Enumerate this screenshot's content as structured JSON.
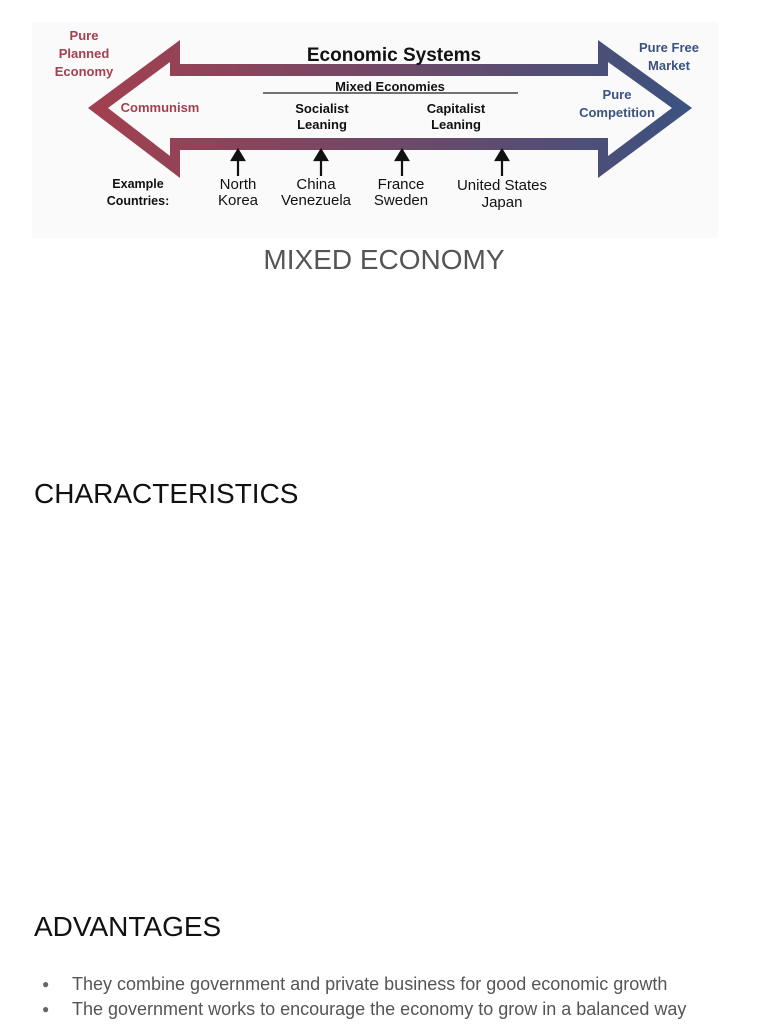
{
  "diagram": {
    "title": "Economic Systems",
    "left_end": [
      "Pure",
      "Planned",
      "Economy"
    ],
    "right_end": [
      "Pure Free",
      "Market"
    ],
    "left_inner": "Communism",
    "right_inner": [
      "Pure",
      "Competition"
    ],
    "middle_heading": "Mixed Economies",
    "socialist": [
      "Socialist",
      "Leaning"
    ],
    "capitalist": [
      "Capitalist",
      "Leaning"
    ],
    "examples_label": [
      "Example",
      "Countries:"
    ],
    "countries": [
      [
        "North",
        "Korea"
      ],
      [
        "China",
        "Venezuela"
      ],
      [
        "France",
        "Sweden"
      ],
      [
        "United States",
        "Japan"
      ]
    ],
    "colors": {
      "left": "#a3404f",
      "right": "#3b5280"
    }
  },
  "document": {
    "title": "MIXED ECONOMY",
    "characteristics_heading": "CHARACTERISTICS",
    "advantages_heading": "ADVANTAGES",
    "advantages": [
      "They combine government and private business for good economic growth",
      "The government works to encourage the economy to grow in a balanced way"
    ]
  }
}
